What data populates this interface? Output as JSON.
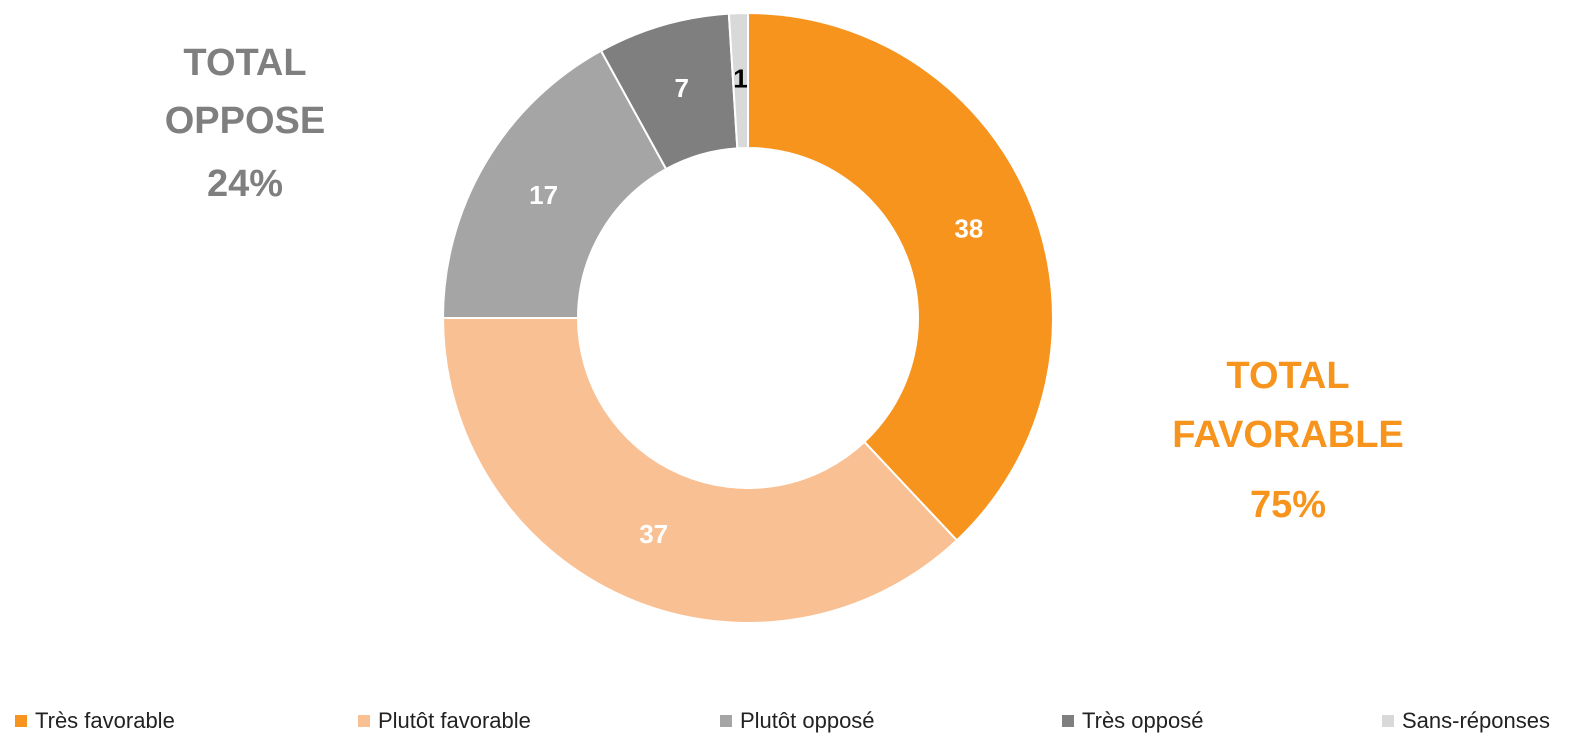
{
  "chart_data": {
    "type": "donut",
    "categories": [
      "Très favorable",
      "Plutôt favorable",
      "Plutôt opposé",
      "Très opposé",
      "Sans-réponses"
    ],
    "values": [
      38,
      37,
      17,
      7,
      1
    ],
    "colors": [
      "#F7941D",
      "#F9C093",
      "#A5A5A5",
      "#7F7F7F",
      "#D9D9D9"
    ],
    "label_colors": [
      "#ffffff",
      "#ffffff",
      "#ffffff",
      "#ffffff",
      "#000000"
    ],
    "legend": "bottom",
    "annotations": [
      {
        "lines": [
          "TOTAL",
          "OPPOSE",
          "24%"
        ],
        "color": "#7F7F7F"
      },
      {
        "lines": [
          "TOTAL",
          "FAVORABLE",
          "75%"
        ],
        "color": "#F7941D"
      }
    ]
  }
}
